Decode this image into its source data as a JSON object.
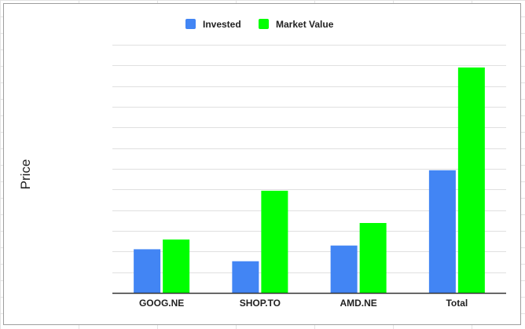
{
  "chart_data": {
    "type": "bar",
    "title": "",
    "xlabel": "",
    "ylabel": "Price",
    "categories": [
      "GOOG.NE",
      "SHOP.TO",
      "AMD.NE",
      "Total"
    ],
    "series": [
      {
        "name": "Invested",
        "color": "#4285f4",
        "values": [
          21.1,
          15.3,
          22.9,
          59.3
        ]
      },
      {
        "name": "Market Value",
        "color": "#00ff00",
        "values": [
          25.8,
          49.4,
          33.8,
          109.0
        ]
      }
    ],
    "ylim": [
      0,
      120
    ],
    "y_gridline_step": 10,
    "y_tick_labels_shown": false,
    "grid": true,
    "legend_position": "top"
  }
}
